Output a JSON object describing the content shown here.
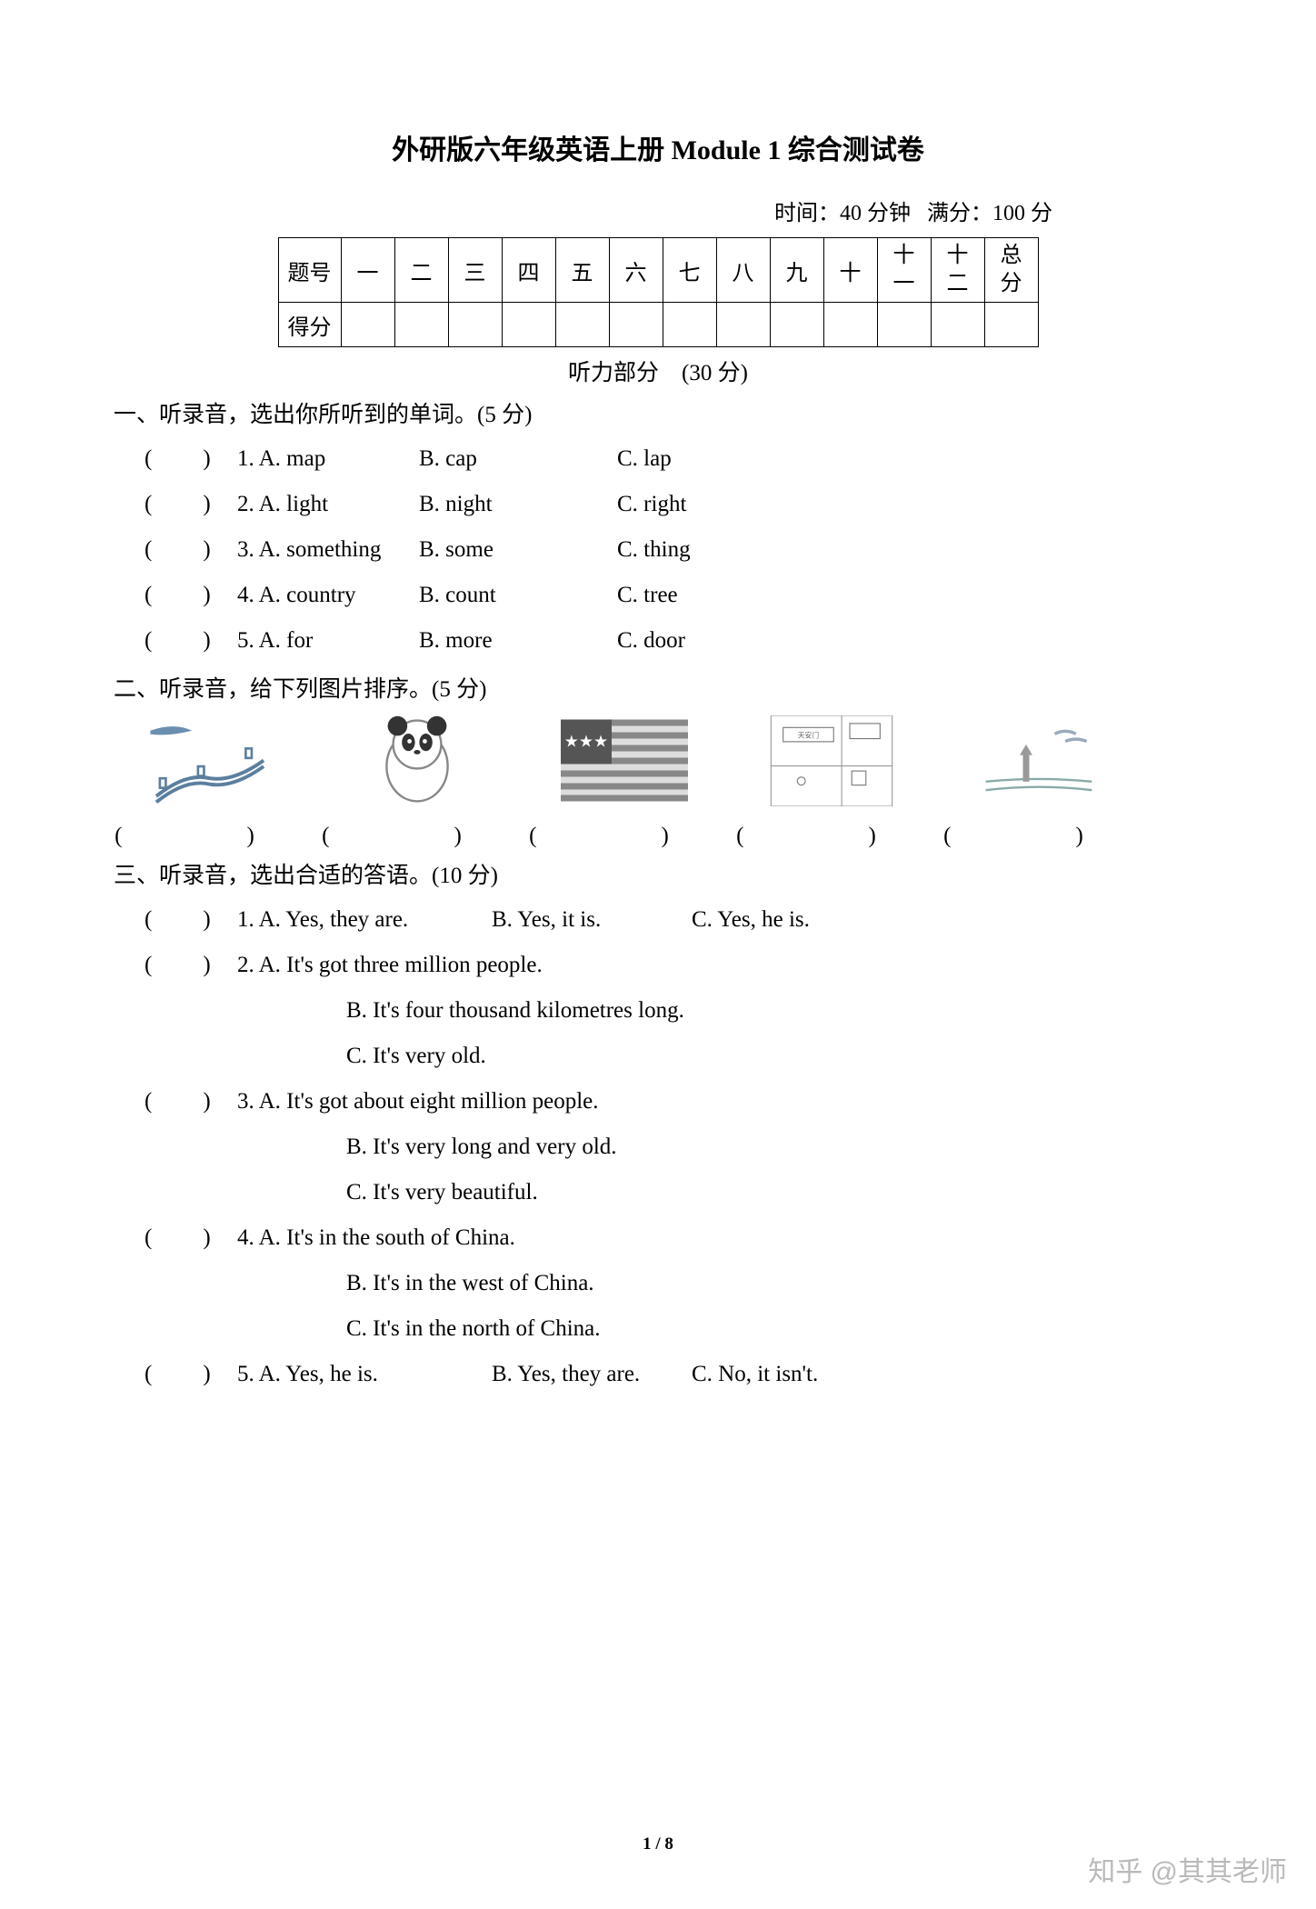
{
  "title": "外研版六年级英语上册 Module 1 综合测试卷",
  "time_label": "时间：40 分钟",
  "full_label": "满分：100 分",
  "table": {
    "row1_label": "题号",
    "row2_label": "得分",
    "cols": [
      "一",
      "二",
      "三",
      "四",
      "五",
      "六",
      "七",
      "八",
      "九",
      "十",
      "十一",
      "十二",
      "总分"
    ]
  },
  "listening_header": "听力部分　(30 分)",
  "s1": {
    "title": "一、听录音，选出你所听到的单词。(5 分)",
    "items": [
      {
        "n": "1.",
        "A": "A. map",
        "B": "B. cap",
        "C": "C. lap"
      },
      {
        "n": "2.",
        "A": "A. light",
        "B": "B. night",
        "C": "C. right"
      },
      {
        "n": "3.",
        "A": "A. something",
        "B": "B. some",
        "C": "C. thing"
      },
      {
        "n": "4.",
        "A": "A. country",
        "B": "B. count",
        "C": "C. tree"
      },
      {
        "n": "5.",
        "A": "A. for",
        "B": "B. more",
        "C": "C. door"
      }
    ]
  },
  "s2": {
    "title": "二、听录音，给下列图片排序。(5 分)",
    "paren": "(　)"
  },
  "s3": {
    "title": "三、听录音，选出合适的答语。(10 分)",
    "items": [
      {
        "type": "one",
        "n": "1.",
        "A": "A. Yes, they are.",
        "B": "B. Yes, it is.",
        "C": "C. Yes, he is."
      },
      {
        "type": "multi",
        "n": "2.",
        "A": "A. It's got three million people.",
        "B": "B. It's four thousand kilometres long.",
        "C": "C. It's very old."
      },
      {
        "type": "multi",
        "n": "3.",
        "A": "A. It's got about eight million people.",
        "B": "B. It's very long and very old.",
        "C": "C. It's very beautiful."
      },
      {
        "type": "multi",
        "n": "4.",
        "A": "A. It's in the south of China.",
        "B": "B. It's in the west of China.",
        "C": "C. It's in the north of China."
      },
      {
        "type": "one",
        "n": "5.",
        "A": "A. Yes, he is.",
        "B": "B. Yes, they are.",
        "C": "C. No, it isn't."
      }
    ]
  },
  "page_num": "1 / 8",
  "watermark": "知乎 @其其老师",
  "colors": {
    "text": "#000",
    "bg": "#fff",
    "wm": "#bababa"
  }
}
